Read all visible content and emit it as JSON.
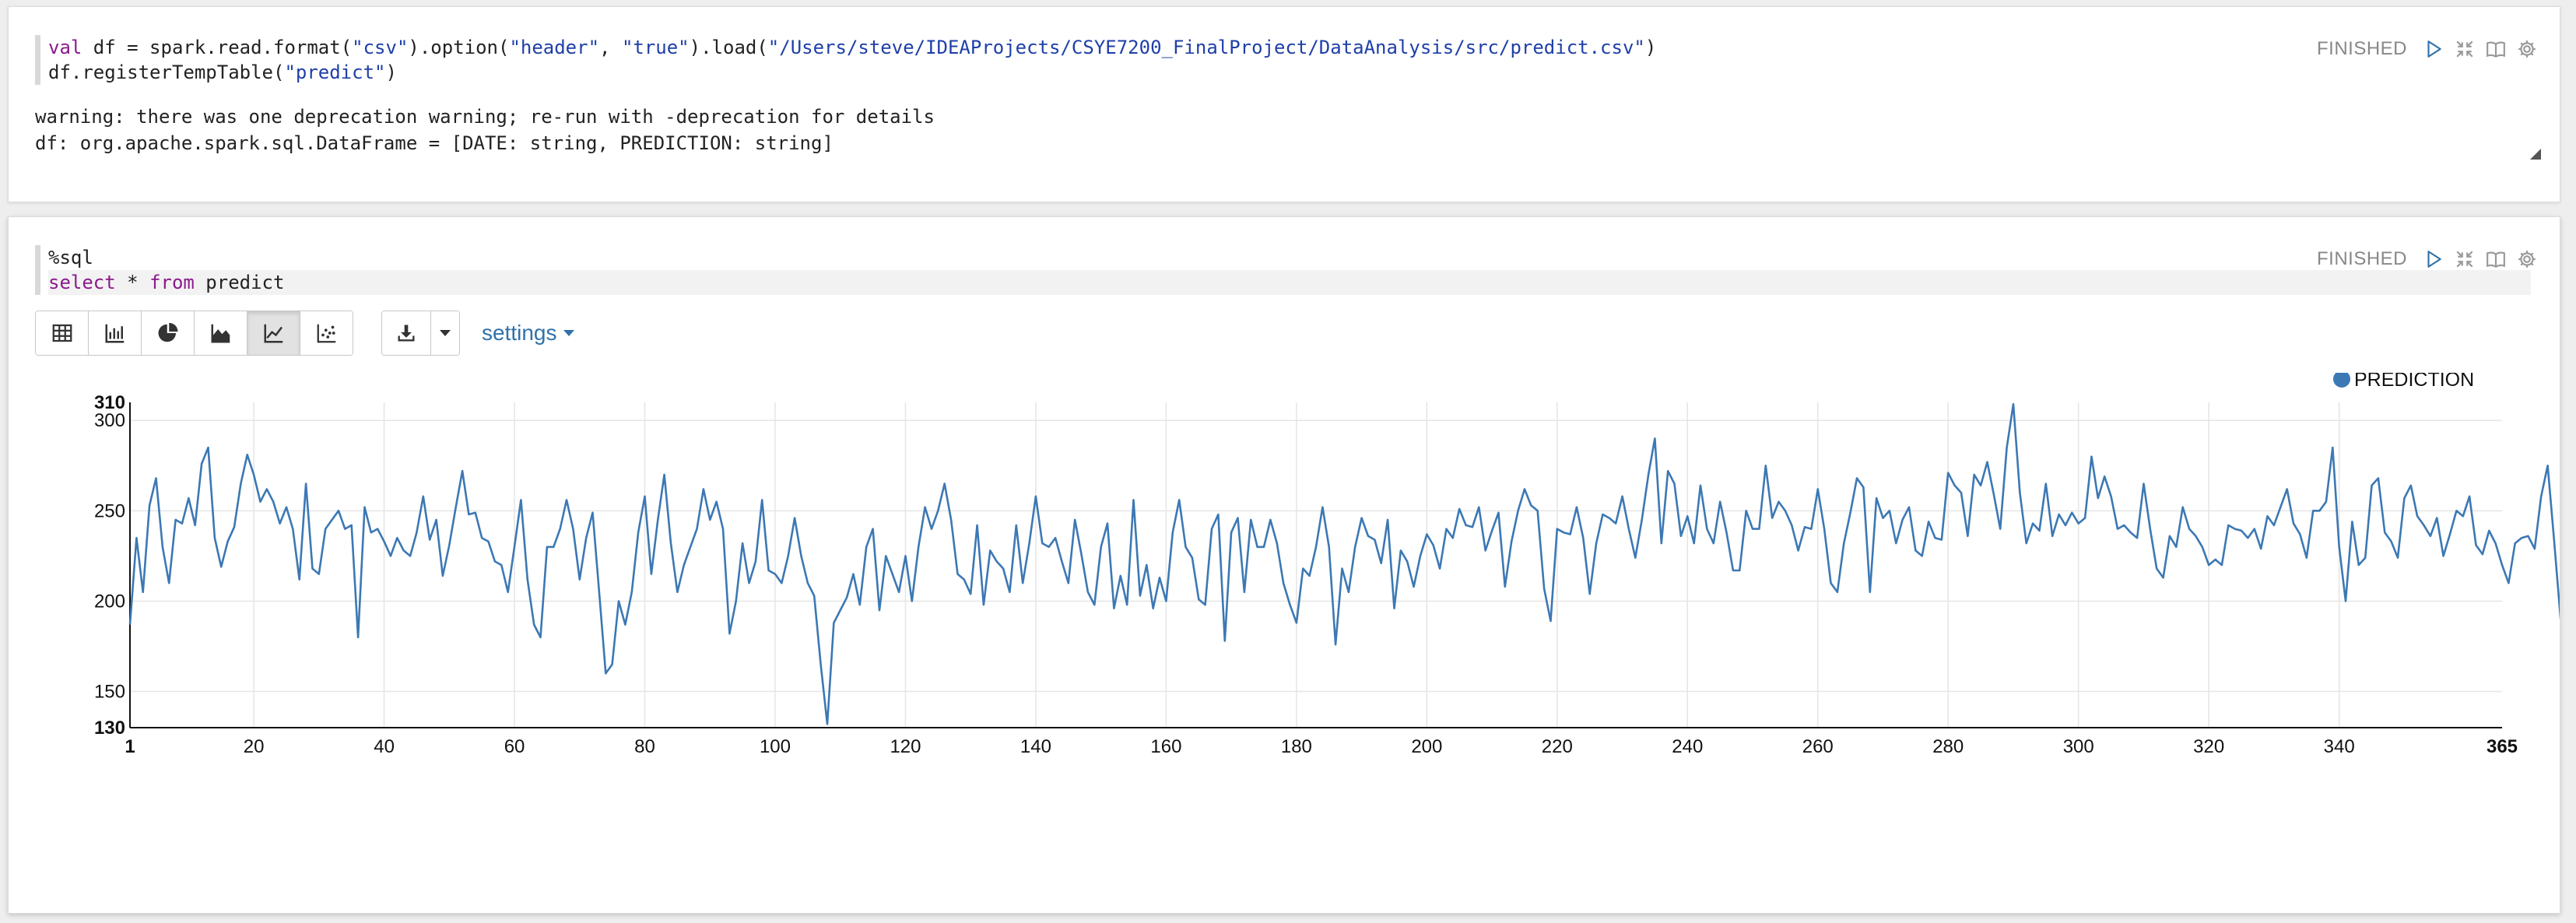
{
  "paragraph1": {
    "code_lines": [
      [
        {
          "t": "val",
          "c": "kw"
        },
        {
          "t": " df = spark.read.format(",
          "c": ""
        },
        {
          "t": "\"csv\"",
          "c": "str"
        },
        {
          "t": ").option(",
          "c": ""
        },
        {
          "t": "\"header\"",
          "c": "str"
        },
        {
          "t": ", ",
          "c": ""
        },
        {
          "t": "\"true\"",
          "c": "str"
        },
        {
          "t": ").load(",
          "c": ""
        },
        {
          "t": "\"/Users/steve/IDEAProjects/CSYE7200_FinalProject/DataAnalysis/src/predict.csv\"",
          "c": "str"
        },
        {
          "t": ")",
          "c": ""
        }
      ],
      [
        {
          "t": "df.registerTempTable(",
          "c": ""
        },
        {
          "t": "\"predict\"",
          "c": "str"
        },
        {
          "t": ")",
          "c": ""
        }
      ]
    ],
    "status": "FINISHED",
    "output": {
      "line1": "warning: there was one deprecation warning; re-run with -deprecation for details",
      "line2": "df: org.apache.spark.sql.DataFrame = [DATE: string, PREDICTION: string]"
    }
  },
  "paragraph2": {
    "code_lines": [
      [
        {
          "t": "%sql",
          "c": ""
        }
      ],
      [
        {
          "t": "select",
          "c": "kw"
        },
        {
          "t": " * ",
          "c": ""
        },
        {
          "t": "from",
          "c": "kw"
        },
        {
          "t": " predict",
          "c": ""
        }
      ]
    ],
    "status": "FINISHED",
    "toolbar": {
      "viz_buttons": [
        {
          "icon": "table-icon",
          "active": false
        },
        {
          "icon": "bar-chart-icon",
          "active": false
        },
        {
          "icon": "pie-chart-icon",
          "active": false
        },
        {
          "icon": "area-chart-icon",
          "active": false
        },
        {
          "icon": "line-chart-icon",
          "active": true
        },
        {
          "icon": "scatter-chart-icon",
          "active": false
        }
      ],
      "download_icon": "download-icon",
      "settings_label": "settings"
    }
  },
  "colors": {
    "line": "#3c78b4",
    "keyword": "#8b1a8b",
    "string": "#1f3fa8",
    "link": "#3071a9",
    "play_icon": "#3071a9"
  },
  "chart_data": {
    "type": "line",
    "xlabel": "",
    "ylabel": "",
    "xlim": [
      1,
      365
    ],
    "ylim": [
      130,
      310
    ],
    "x_ticks": [
      1,
      20,
      40,
      60,
      80,
      100,
      120,
      140,
      160,
      180,
      200,
      220,
      240,
      260,
      280,
      300,
      320,
      340,
      365
    ],
    "y_ticks": [
      130,
      150,
      200,
      250,
      300,
      310
    ],
    "grid": true,
    "legend": "top-right",
    "series": [
      {
        "name": "PREDICTION",
        "x_start": 1,
        "values": [
          187,
          235,
          205,
          253,
          268,
          230,
          210,
          245,
          243,
          257,
          242,
          276,
          285,
          235,
          219,
          233,
          241,
          265,
          281,
          270,
          255,
          262,
          255,
          243,
          252,
          240,
          212,
          265,
          218,
          215,
          240,
          245,
          250,
          240,
          242,
          180,
          252,
          238,
          240,
          233,
          225,
          235,
          228,
          225,
          238,
          258,
          234,
          245,
          214,
          231,
          252,
          272,
          248,
          249,
          235,
          233,
          222,
          220,
          205,
          230,
          256,
          212,
          187,
          180,
          230,
          230,
          240,
          256,
          240,
          212,
          235,
          249,
          205,
          160,
          165,
          200,
          187,
          205,
          238,
          258,
          215,
          245,
          270,
          232,
          205,
          220,
          230,
          240,
          262,
          245,
          255,
          240,
          182,
          200,
          232,
          210,
          222,
          256,
          217,
          215,
          210,
          225,
          246,
          225,
          210,
          203,
          165,
          132,
          188,
          195,
          202,
          215,
          198,
          230,
          240,
          195,
          225,
          215,
          205,
          225,
          200,
          230,
          252,
          240,
          250,
          265,
          245,
          215,
          212,
          204,
          242,
          198,
          228,
          222,
          218,
          205,
          242,
          210,
          232,
          258,
          232,
          230,
          235,
          222,
          210,
          245,
          226,
          205,
          198,
          230,
          243,
          196,
          214,
          198,
          256,
          203,
          220,
          196,
          213,
          200,
          238,
          256,
          230,
          224,
          201,
          198,
          240,
          248,
          178,
          238,
          246,
          205,
          245,
          230,
          230,
          245,
          232,
          210,
          198,
          188,
          218,
          214,
          230,
          252,
          230,
          176,
          218,
          205,
          230,
          246,
          236,
          234,
          221,
          245,
          196,
          228,
          222,
          208,
          225,
          237,
          231,
          218,
          240,
          235,
          251,
          242,
          241,
          252,
          228,
          239,
          249,
          208,
          233,
          250,
          262,
          253,
          250,
          207,
          189,
          240,
          238,
          237,
          252,
          235,
          204,
          232,
          248,
          246,
          243,
          258,
          240,
          224,
          245,
          270,
          290,
          232,
          272,
          265,
          236,
          247,
          232,
          264,
          240,
          232,
          255,
          238,
          217,
          217,
          250,
          240,
          240,
          275,
          246,
          255,
          250,
          242,
          228,
          241,
          240,
          262,
          240,
          210,
          205,
          232,
          249,
          268,
          263,
          205,
          257,
          246,
          250,
          232,
          245,
          252,
          228,
          225,
          244,
          235,
          234,
          271,
          264,
          260,
          236,
          270,
          264,
          277,
          259,
          240,
          285,
          309,
          260,
          232,
          243,
          239,
          265,
          236,
          248,
          242,
          249,
          243,
          246,
          280,
          257,
          269,
          258,
          240,
          242,
          238,
          235,
          265,
          240,
          218,
          213,
          236,
          230,
          252,
          240,
          236,
          230,
          220,
          223,
          220,
          242,
          240,
          239,
          235,
          240,
          229,
          247,
          242,
          252,
          262,
          243,
          237,
          224,
          250,
          250,
          255,
          285,
          230,
          200,
          244,
          220,
          224,
          264,
          268,
          238,
          233,
          224,
          257,
          264,
          247,
          242,
          236,
          246,
          225,
          237,
          250,
          247,
          258,
          231,
          226,
          239,
          232,
          220,
          210,
          232,
          235,
          236,
          229,
          258,
          275,
          233,
          189,
          185
        ]
      }
    ]
  }
}
